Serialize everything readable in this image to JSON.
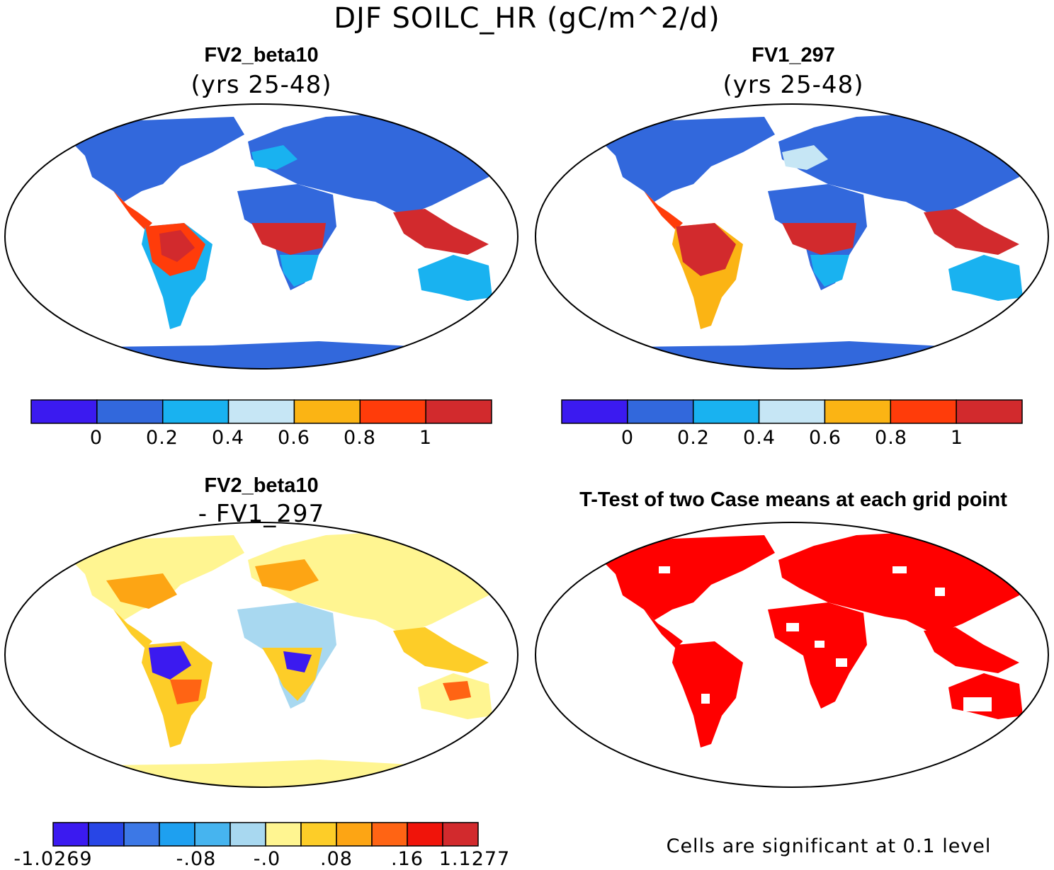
{
  "main_title": "DJF SOILC_HR (gC/m^2/d)",
  "panels": [
    {
      "title": "FV2_beta10",
      "subtitle": "(yrs 25-48)"
    },
    {
      "title": "FV1_297",
      "subtitle": "(yrs 25-48)"
    },
    {
      "title": "FV2_beta10",
      "subtitle": "- FV1_297"
    },
    {
      "title": "T-Test of two Case means at each grid point",
      "subtitle": ""
    }
  ],
  "colorbar_means": {
    "colors": [
      "#3b1af0",
      "#3268dc",
      "#19b2f0",
      "#c6e6f5",
      "#fbb414",
      "#ff3c0a",
      "#d22a2d"
    ],
    "labels": [
      "0",
      "0.2",
      "0.4",
      "0.6",
      "0.8",
      "1"
    ]
  },
  "colorbar_diff": {
    "colors": [
      "#3b1af0",
      "#2846e6",
      "#3c78e6",
      "#1ea0f0",
      "#46b4ef",
      "#a8d8f0",
      "#fff591",
      "#fdcd28",
      "#fda514",
      "#ff6414",
      "#f0140a",
      "#d22a2d"
    ],
    "labels": [
      "-1.0269",
      "-.08",
      "-.0",
      ".08",
      ".16",
      "1.1277"
    ]
  },
  "ttest_color": "#ff0000",
  "significance_note": "Cells are significant at 0.1 level"
}
